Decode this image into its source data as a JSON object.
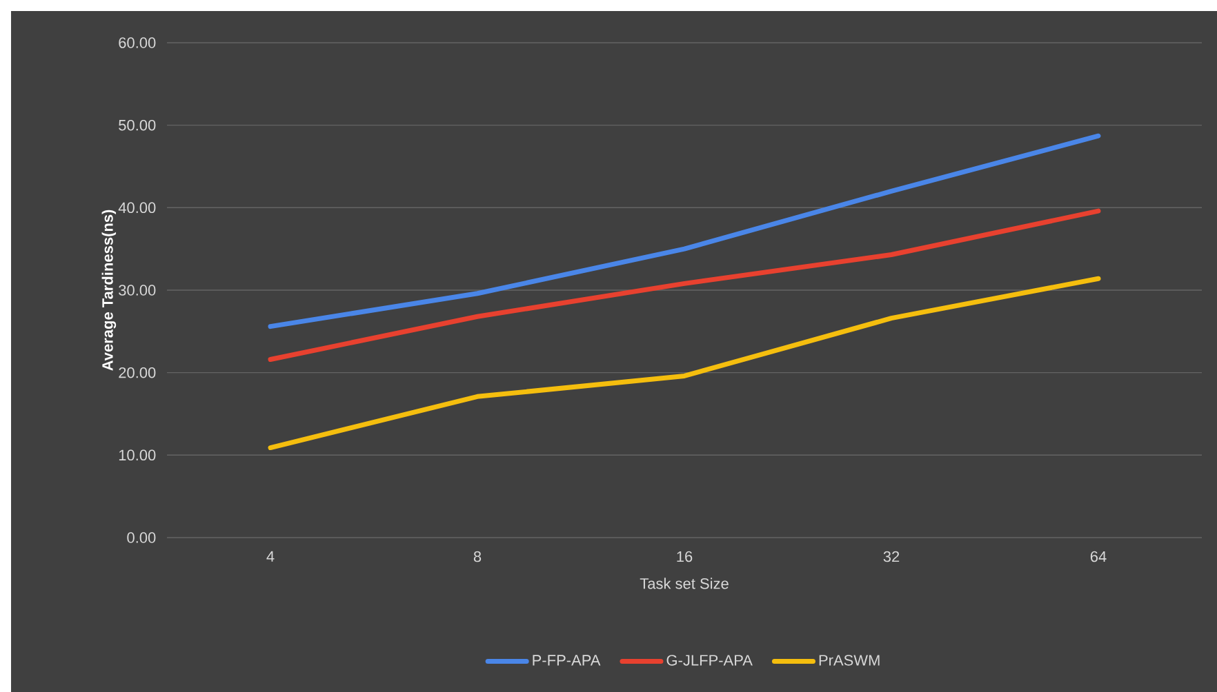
{
  "chart_data": {
    "type": "line",
    "xlabel": "Task set Size",
    "ylabel": "Average Tardiness(ns)",
    "categories": [
      "4",
      "8",
      "16",
      "32",
      "64"
    ],
    "series": [
      {
        "name": "P-FP-APA",
        "color": "#4a86e8",
        "values": [
          25.6,
          29.6,
          35.0,
          42.0,
          48.7
        ]
      },
      {
        "name": "G-JLFP-APA",
        "color": "#e8412f",
        "values": [
          21.6,
          26.8,
          30.8,
          34.3,
          39.6
        ]
      },
      {
        "name": "PrASWM",
        "color": "#f5be0e",
        "values": [
          10.9,
          17.1,
          19.6,
          26.6,
          31.4
        ]
      }
    ],
    "ylim": [
      0,
      60
    ],
    "yticks": [
      {
        "value": 0,
        "label": "0.00"
      },
      {
        "value": 10,
        "label": "10.00"
      },
      {
        "value": 20,
        "label": "20.00"
      },
      {
        "value": 30,
        "label": "30.00"
      },
      {
        "value": 40,
        "label": "40.00"
      },
      {
        "value": 50,
        "label": "50.00"
      },
      {
        "value": 60,
        "label": "60.00"
      }
    ],
    "grid": "y",
    "legend": "bottom",
    "marker": "none",
    "line_style": "solid"
  }
}
